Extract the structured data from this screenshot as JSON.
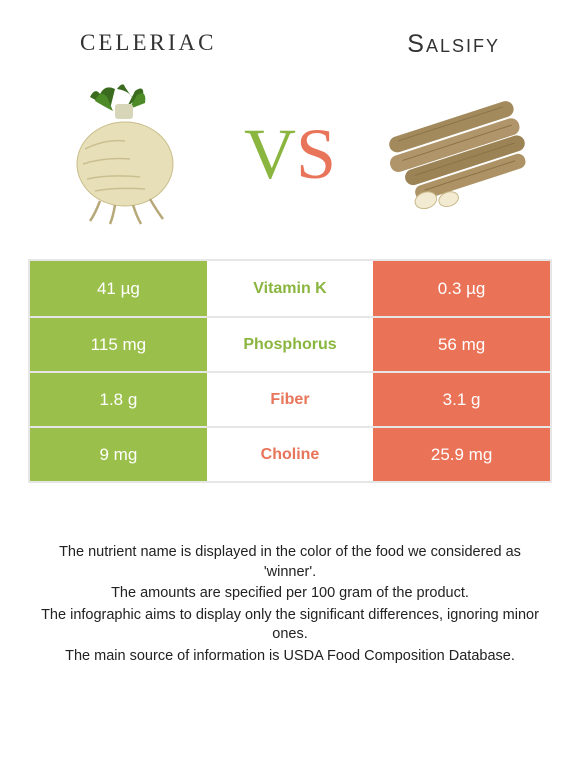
{
  "header": {
    "left_title": "CELERIAC",
    "right_title": "Salsify"
  },
  "vs": {
    "v": "V",
    "s": "S"
  },
  "colors": {
    "left_bg": "#9ac04b",
    "right_bg": "#ea7256",
    "left_text": "#8ab53f",
    "right_text": "#e8745a",
    "border": "#e6e6e6"
  },
  "comparison": {
    "rows": [
      {
        "left": "41 µg",
        "label": "Vitamin K",
        "right": "0.3 µg",
        "winner": "left"
      },
      {
        "left": "115 mg",
        "label": "Phosphorus",
        "right": "56 mg",
        "winner": "left"
      },
      {
        "left": "1.8 g",
        "label": "Fiber",
        "right": "3.1 g",
        "winner": "right"
      },
      {
        "left": "9 mg",
        "label": "Choline",
        "right": "25.9 mg",
        "winner": "right"
      }
    ]
  },
  "footnotes": [
    "The nutrient name is displayed in the color of the food we considered as 'winner'.",
    "The amounts are specified per 100 gram of the product.",
    "The infographic aims to display only the significant differences, ignoring minor ones.",
    "The main source of information is USDA Food Composition Database."
  ],
  "images": {
    "left_alt": "celeriac-root",
    "right_alt": "salsify-roots"
  }
}
